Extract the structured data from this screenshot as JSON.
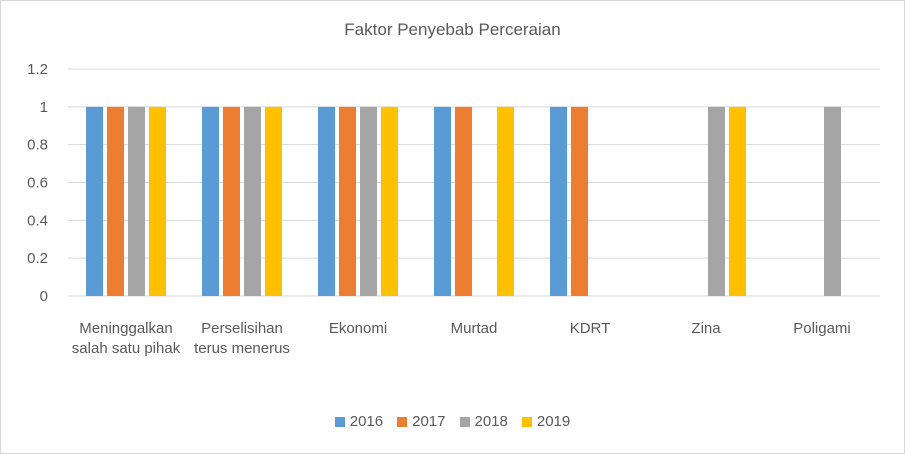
{
  "chart_data": {
    "type": "bar",
    "title": "Faktor Penyebab Perceraian",
    "xlabel": "",
    "ylabel": "",
    "ylim": [
      0,
      1.2
    ],
    "yticks": [
      "0",
      "0.2",
      "0.4",
      "0.6",
      "0.8",
      "1",
      "1.2"
    ],
    "categories": [
      "Meninggalkan salah satu pihak",
      "Perselisihan terus menerus",
      "Ekonomi",
      "Murtad",
      "KDRT",
      "Zina",
      "Poligami"
    ],
    "series": [
      {
        "name": "2016",
        "color": "#5b9bd5",
        "values": [
          1,
          1,
          1,
          1,
          1,
          0,
          0
        ]
      },
      {
        "name": "2017",
        "color": "#ed7d31",
        "values": [
          1,
          1,
          1,
          1,
          1,
          0,
          0
        ]
      },
      {
        "name": "2018",
        "color": "#a5a5a5",
        "values": [
          1,
          1,
          1,
          0,
          0,
          1,
          1
        ]
      },
      {
        "name": "2019",
        "color": "#ffc000",
        "values": [
          1,
          1,
          1,
          1,
          0,
          1,
          0
        ]
      }
    ],
    "grid": true,
    "legend_position": "bottom"
  }
}
